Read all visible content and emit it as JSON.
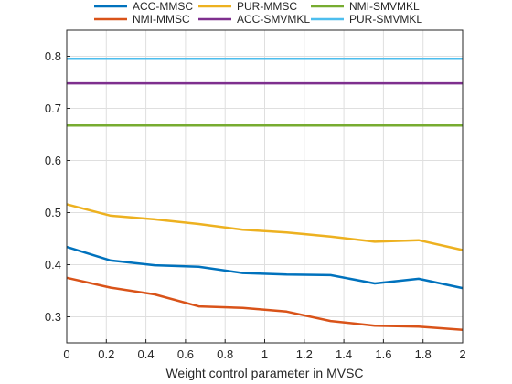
{
  "chart_data": {
    "type": "line",
    "title": "",
    "xlabel": "Weight control parameter in MVSC",
    "ylabel": "",
    "xlim": [
      0,
      2
    ],
    "ylim": [
      0.25,
      0.85
    ],
    "grid": true,
    "legend_position": "top",
    "x_ticks": [
      "0",
      "0.2",
      "0.4",
      "0.6",
      "0.8",
      "1",
      "1.2",
      "1.4",
      "1.6",
      "1.8",
      "2"
    ],
    "y_ticks": [
      "0.3",
      "0.4",
      "0.5",
      "0.6",
      "0.7",
      "0.8"
    ],
    "x": [
      0,
      0.222,
      0.444,
      0.667,
      0.889,
      1.111,
      1.333,
      1.556,
      1.778,
      2.0
    ],
    "series": [
      {
        "name": "ACC-MMSC",
        "color": "#0072BD",
        "values": [
          0.434,
          0.408,
          0.399,
          0.396,
          0.384,
          0.381,
          0.38,
          0.364,
          0.373,
          0.355
        ]
      },
      {
        "name": "NMI-MMSC",
        "color": "#D95319",
        "values": [
          0.375,
          0.356,
          0.343,
          0.32,
          0.317,
          0.31,
          0.292,
          0.283,
          0.281,
          0.275
        ]
      },
      {
        "name": "PUR-MMSC",
        "color": "#EDB120",
        "values": [
          0.516,
          0.494,
          0.487,
          0.478,
          0.467,
          0.462,
          0.454,
          0.444,
          0.447,
          0.428
        ]
      },
      {
        "name": "ACC-SMVMKL",
        "color": "#7E2F8E",
        "values": [
          0.748,
          0.748,
          0.748,
          0.748,
          0.748,
          0.748,
          0.748,
          0.748,
          0.748,
          0.748
        ]
      },
      {
        "name": "NMI-SMVMKL",
        "color": "#77AC30",
        "values": [
          0.667,
          0.667,
          0.667,
          0.667,
          0.667,
          0.667,
          0.667,
          0.667,
          0.667,
          0.667
        ]
      },
      {
        "name": "PUR-SMVMKL",
        "color": "#4DBEEE",
        "values": [
          0.795,
          0.795,
          0.795,
          0.795,
          0.795,
          0.795,
          0.795,
          0.795,
          0.795,
          0.795
        ]
      }
    ],
    "legend_order": [
      "ACC-MMSC",
      "PUR-MMSC",
      "NMI-SMVMKL",
      "NMI-MMSC",
      "ACC-SMVMKL",
      "PUR-SMVMKL"
    ]
  }
}
